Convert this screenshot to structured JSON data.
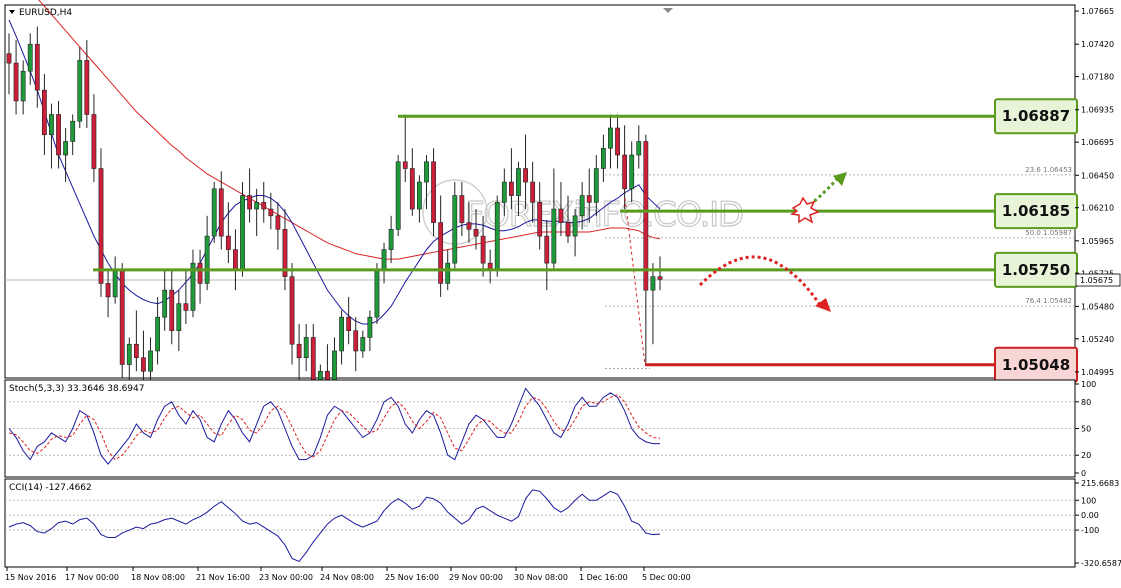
{
  "chart_data": [
    {
      "type": "candlestick",
      "title": "EURUSD,H4",
      "y_ticks": [
        1.04995,
        1.0524,
        1.0548,
        1.05725,
        1.05965,
        1.0621,
        1.0645,
        1.06695,
        1.06935,
        1.0718,
        1.0742,
        1.07665
      ],
      "ylim": [
        1.0495,
        1.0771
      ],
      "current_price": "1.05675",
      "levels": [
        {
          "label": "1.06887",
          "value": 1.06887,
          "color": "#5a9a1f",
          "status": "resistance"
        },
        {
          "label": "1.06185",
          "value": 1.06185,
          "color": "#5a9a1f",
          "status": "resistance"
        },
        {
          "label": "1.05750",
          "value": 1.0575,
          "color": "#5a9a1f",
          "status": "support"
        },
        {
          "label": "1.05048",
          "value": 1.05048,
          "color": "#cc1f1f",
          "status": "low"
        }
      ],
      "fibo": [
        {
          "label": "23.6  1.06453",
          "value": 1.06453
        },
        {
          "label": "50.0  1.05987",
          "value": 1.05987
        },
        {
          "label": "76.4  1.05482",
          "value": 1.05482
        }
      ],
      "x_ticks": [
        "15 Nov 2016",
        "17 Nov 00:00",
        "18 Nov 08:00",
        "21 Nov 16:00",
        "23 Nov 00:00",
        "24 Nov 08:00",
        "25 Nov 16:00",
        "29 Nov 00:00",
        "30 Nov 08:00",
        "1 Dec 16:00",
        "5 Dec 00:00"
      ],
      "colors": {
        "bull": "#1f9a3a",
        "bear": "#cc1f3a",
        "ma_fast": "#1a1aa0",
        "ma_slow": "#dd2222"
      },
      "candles": [
        [
          1.0735,
          1.075,
          1.0705,
          1.0728
        ],
        [
          1.0728,
          1.0745,
          1.069,
          1.07
        ],
        [
          1.07,
          1.073,
          1.069,
          1.0722
        ],
        [
          1.0722,
          1.075,
          1.0712,
          1.0742
        ],
        [
          1.0742,
          1.0755,
          1.0695,
          1.0708
        ],
        [
          1.0708,
          1.072,
          1.066,
          1.0675
        ],
        [
          1.0675,
          1.0698,
          1.065,
          1.069
        ],
        [
          1.069,
          1.07,
          1.065,
          1.066
        ],
        [
          1.066,
          1.068,
          1.064,
          1.067
        ],
        [
          1.067,
          1.069,
          1.066,
          1.0685
        ],
        [
          1.0685,
          1.074,
          1.068,
          1.073
        ],
        [
          1.073,
          1.0745,
          1.068,
          1.069
        ],
        [
          1.069,
          1.0705,
          1.064,
          1.065
        ],
        [
          1.065,
          1.0665,
          1.0555,
          1.0565
        ],
        [
          1.0565,
          1.0575,
          1.054,
          1.0555
        ],
        [
          1.0555,
          1.0585,
          1.055,
          1.0575
        ],
        [
          1.0575,
          1.058,
          1.0495,
          1.0505
        ],
        [
          1.0505,
          1.0525,
          1.049,
          1.052
        ],
        [
          1.052,
          1.0545,
          1.05,
          1.051
        ],
        [
          1.051,
          1.053,
          1.048,
          1.05
        ],
        [
          1.05,
          1.0525,
          1.047,
          1.0515
        ],
        [
          1.0515,
          1.0555,
          1.0505,
          1.054
        ],
        [
          1.054,
          1.0575,
          1.053,
          1.056
        ],
        [
          1.056,
          1.0575,
          1.052,
          1.053
        ],
        [
          1.053,
          1.056,
          1.0515,
          1.055
        ],
        [
          1.055,
          1.0575,
          1.0535,
          1.0545
        ],
        [
          1.0545,
          1.059,
          1.054,
          1.058
        ],
        [
          1.058,
          1.059,
          1.055,
          1.0565
        ],
        [
          1.0565,
          1.0615,
          1.056,
          1.06
        ],
        [
          1.06,
          1.064,
          1.0595,
          1.0635
        ],
        [
          1.0635,
          1.0648,
          1.059,
          1.06
        ],
        [
          1.06,
          1.0625,
          1.058,
          1.059
        ],
        [
          1.059,
          1.0605,
          1.056,
          1.0575
        ],
        [
          1.0575,
          1.064,
          1.057,
          1.063
        ],
        [
          1.063,
          1.065,
          1.061,
          1.062
        ],
        [
          1.062,
          1.0635,
          1.06,
          1.0625
        ],
        [
          1.0625,
          1.064,
          1.061,
          1.062
        ],
        [
          1.062,
          1.0632,
          1.0605,
          1.0615
        ],
        [
          1.0615,
          1.0625,
          1.059,
          1.0605
        ],
        [
          1.0605,
          1.062,
          1.056,
          1.057
        ],
        [
          1.057,
          1.058,
          1.0505,
          1.052
        ],
        [
          1.052,
          1.0535,
          1.049,
          1.051
        ],
        [
          1.051,
          1.0535,
          1.05,
          1.0525
        ],
        [
          1.0525,
          1.0535,
          1.0465,
          1.048
        ],
        [
          1.048,
          1.0505,
          1.047,
          1.05
        ],
        [
          1.05,
          1.052,
          1.046,
          1.0475
        ],
        [
          1.0475,
          1.0525,
          1.047,
          1.0515
        ],
        [
          1.0515,
          1.0545,
          1.0505,
          1.054
        ],
        [
          1.054,
          1.0555,
          1.052,
          1.053
        ],
        [
          1.053,
          1.054,
          1.05,
          1.0515
        ],
        [
          1.0515,
          1.053,
          1.051,
          1.0525
        ],
        [
          1.0525,
          1.0545,
          1.0515,
          1.054
        ],
        [
          1.054,
          1.058,
          1.0535,
          1.0575
        ],
        [
          1.0575,
          1.0595,
          1.0565,
          1.059
        ],
        [
          1.059,
          1.0615,
          1.058,
          1.0605
        ],
        [
          1.0605,
          1.066,
          1.06,
          1.0655
        ],
        [
          1.0655,
          1.069,
          1.064,
          1.065
        ],
        [
          1.065,
          1.0665,
          1.0615,
          1.062
        ],
        [
          1.062,
          1.0645,
          1.061,
          1.064
        ],
        [
          1.064,
          1.066,
          1.062,
          1.0655
        ],
        [
          1.0655,
          1.0665,
          1.06,
          1.061
        ],
        [
          1.061,
          1.063,
          1.0555,
          1.0565
        ],
        [
          1.0565,
          1.059,
          1.056,
          1.058
        ],
        [
          1.058,
          1.064,
          1.0575,
          1.063
        ],
        [
          1.063,
          1.064,
          1.06,
          1.061
        ],
        [
          1.061,
          1.0625,
          1.0595,
          1.0605
        ],
        [
          1.0605,
          1.062,
          1.059,
          1.06
        ],
        [
          1.06,
          1.0615,
          1.057,
          1.058
        ],
        [
          1.058,
          1.059,
          1.0565,
          1.0575
        ],
        [
          1.0575,
          1.063,
          1.057,
          1.0625
        ],
        [
          1.0625,
          1.065,
          1.0615,
          1.064
        ],
        [
          1.064,
          1.0665,
          1.062,
          1.063
        ],
        [
          1.063,
          1.0655,
          1.0615,
          1.065
        ],
        [
          1.065,
          1.0675,
          1.062,
          1.064
        ],
        [
          1.064,
          1.0655,
          1.061,
          1.0625
        ],
        [
          1.0625,
          1.064,
          1.059,
          1.06
        ],
        [
          1.06,
          1.0612,
          1.056,
          1.058
        ],
        [
          1.058,
          1.065,
          1.0575,
          1.062
        ],
        [
          1.062,
          1.064,
          1.06,
          1.061
        ],
        [
          1.061,
          1.063,
          1.0595,
          1.06
        ],
        [
          1.06,
          1.062,
          1.0585,
          1.0615
        ],
        [
          1.0615,
          1.064,
          1.0605,
          1.063
        ],
        [
          1.063,
          1.065,
          1.061,
          1.0625
        ],
        [
          1.0625,
          1.066,
          1.0615,
          1.065
        ],
        [
          1.065,
          1.0675,
          1.064,
          1.0665
        ],
        [
          1.0665,
          1.069,
          1.065,
          1.068
        ],
        [
          1.068,
          1.069,
          1.065,
          1.066
        ],
        [
          1.066,
          1.0682,
          1.062,
          1.0635
        ],
        [
          1.0635,
          1.067,
          1.0625,
          1.066
        ],
        [
          1.066,
          1.0682,
          1.065,
          1.067
        ],
        [
          1.067,
          1.0675,
          1.0505,
          1.056
        ],
        [
          1.056,
          1.058,
          1.052,
          1.057
        ],
        [
          1.057,
          1.0585,
          1.056,
          1.0568
        ]
      ],
      "ma_fast": [
        1.076,
        1.0748,
        1.0735,
        1.0722,
        1.0708,
        1.0692,
        1.0676,
        1.066,
        1.0648,
        1.0636,
        1.0624,
        1.0612,
        1.06,
        1.059,
        1.058,
        1.0572,
        1.0565,
        1.056,
        1.0556,
        1.0553,
        1.0551,
        1.055,
        1.0552,
        1.0556,
        1.056,
        1.0566,
        1.0572,
        1.058,
        1.059,
        1.06,
        1.061,
        1.0617,
        1.0623,
        1.0626,
        1.0628,
        1.063,
        1.063,
        1.0628,
        1.0624,
        1.0618,
        1.061,
        1.06,
        1.059,
        1.058,
        1.057,
        1.056,
        1.0553,
        1.0546,
        1.0541,
        1.0537,
        1.0535,
        1.0535,
        1.0537,
        1.0542,
        1.0548,
        1.0557,
        1.0566,
        1.0574,
        1.0582,
        1.059,
        1.0596,
        1.06,
        1.0603,
        1.0606,
        1.0608,
        1.0609,
        1.0609,
        1.0608,
        1.0606,
        1.0604,
        1.0604,
        1.0605,
        1.0607,
        1.061,
        1.0612,
        1.0612,
        1.0611,
        1.0611,
        1.0611,
        1.061,
        1.061,
        1.0611,
        1.0613,
        1.0617,
        1.0621,
        1.0625,
        1.0628,
        1.0632,
        1.0635,
        1.0638,
        1.063,
        1.0625,
        1.062
      ],
      "ma_slow": [
        1.08,
        1.0794,
        1.0788,
        1.0782,
        1.0776,
        1.077,
        1.0764,
        1.0758,
        1.0752,
        1.0746,
        1.074,
        1.0734,
        1.0728,
        1.0722,
        1.0716,
        1.071,
        1.0704,
        1.0698,
        1.0692,
        1.0687,
        1.0682,
        1.0677,
        1.0672,
        1.0667,
        1.0663,
        1.0658,
        1.0654,
        1.065,
        1.0646,
        1.0643,
        1.064,
        1.0637,
        1.0634,
        1.0631,
        1.0628,
        1.0625,
        1.0622,
        1.0619,
        1.0616,
        1.0613,
        1.061,
        1.0607,
        1.0604,
        1.0601,
        1.0598,
        1.0595,
        1.0593,
        1.0591,
        1.0589,
        1.0587,
        1.0586,
        1.0585,
        1.0584,
        1.0583,
        1.0583,
        1.0583,
        1.0584,
        1.0585,
        1.0586,
        1.0587,
        1.0588,
        1.0589,
        1.059,
        1.0591,
        1.0592,
        1.0593,
        1.0594,
        1.0595,
        1.0596,
        1.0597,
        1.0598,
        1.0599,
        1.06,
        1.0601,
        1.0602,
        1.0603,
        1.0603,
        1.0603,
        1.0603,
        1.0603,
        1.0603,
        1.0603,
        1.0603,
        1.0604,
        1.0605,
        1.0606,
        1.0606,
        1.0606,
        1.0605,
        1.0604,
        1.0601,
        1.0599,
        1.0598
      ]
    },
    {
      "type": "line",
      "title": "Stoch(5,3,3) 33.3646 38.6947",
      "y_ticks": [
        "100",
        "80",
        "50",
        "20",
        "0"
      ],
      "ylim": [
        0,
        100
      ],
      "levels": [
        80,
        50,
        20
      ],
      "series": [
        {
          "color": "#1a1aa0",
          "style": "solid",
          "values": [
            50,
            40,
            25,
            15,
            30,
            35,
            45,
            40,
            35,
            50,
            70,
            65,
            45,
            20,
            10,
            20,
            30,
            40,
            55,
            45,
            40,
            60,
            75,
            80,
            65,
            55,
            70,
            60,
            40,
            35,
            55,
            70,
            60,
            45,
            35,
            55,
            75,
            80,
            70,
            50,
            30,
            15,
            15,
            20,
            40,
            65,
            75,
            70,
            60,
            50,
            40,
            45,
            60,
            80,
            85,
            75,
            55,
            45,
            60,
            70,
            65,
            45,
            20,
            15,
            35,
            55,
            65,
            60,
            50,
            40,
            40,
            55,
            75,
            95,
            85,
            75,
            60,
            45,
            40,
            55,
            75,
            85,
            75,
            75,
            85,
            90,
            85,
            70,
            50,
            40,
            35,
            33,
            33
          ]
        },
        {
          "color": "#dd2222",
          "style": "dashed",
          "values": [
            45,
            43,
            35,
            25,
            22,
            28,
            38,
            42,
            40,
            42,
            55,
            65,
            60,
            45,
            25,
            15,
            20,
            30,
            42,
            48,
            45,
            48,
            62,
            72,
            75,
            68,
            62,
            65,
            55,
            45,
            42,
            55,
            65,
            60,
            48,
            45,
            55,
            70,
            75,
            68,
            52,
            35,
            22,
            18,
            25,
            42,
            60,
            70,
            68,
            60,
            52,
            45,
            48,
            62,
            75,
            80,
            72,
            58,
            50,
            58,
            68,
            62,
            45,
            28,
            25,
            38,
            52,
            60,
            58,
            50,
            45,
            45,
            58,
            75,
            85,
            82,
            72,
            58,
            48,
            48,
            60,
            75,
            80,
            78,
            80,
            85,
            88,
            80,
            65,
            52,
            45,
            40,
            39
          ]
        }
      ]
    },
    {
      "type": "line",
      "title": "CCI(14) -127.4662",
      "y_ticks": [
        "215.6683",
        "100",
        "0.00",
        "-100",
        "-320.6587"
      ],
      "ylim": [
        -320.6587,
        215.6683
      ],
      "levels": [
        100,
        0,
        -100
      ],
      "series": [
        {
          "color": "#1a1aa0",
          "style": "solid",
          "values": [
            -80,
            -60,
            -50,
            -70,
            -110,
            -120,
            -90,
            -50,
            -40,
            -60,
            -30,
            -20,
            -60,
            -130,
            -150,
            -150,
            -120,
            -100,
            -80,
            -90,
            -60,
            -50,
            -30,
            -20,
            -40,
            -60,
            -30,
            -10,
            20,
            60,
            90,
            50,
            10,
            -40,
            -60,
            -50,
            -80,
            -110,
            -140,
            -200,
            -290,
            -310,
            -250,
            -180,
            -120,
            -60,
            -20,
            0,
            -30,
            -60,
            -80,
            -60,
            -40,
            30,
            80,
            110,
            80,
            40,
            60,
            120,
            110,
            80,
            20,
            -20,
            -60,
            -30,
            40,
            60,
            30,
            0,
            -20,
            -40,
            -10,
            110,
            170,
            160,
            110,
            50,
            20,
            50,
            100,
            140,
            100,
            100,
            130,
            160,
            140,
            60,
            -40,
            -60,
            -120,
            -130,
            -127
          ]
        }
      ]
    }
  ]
}
